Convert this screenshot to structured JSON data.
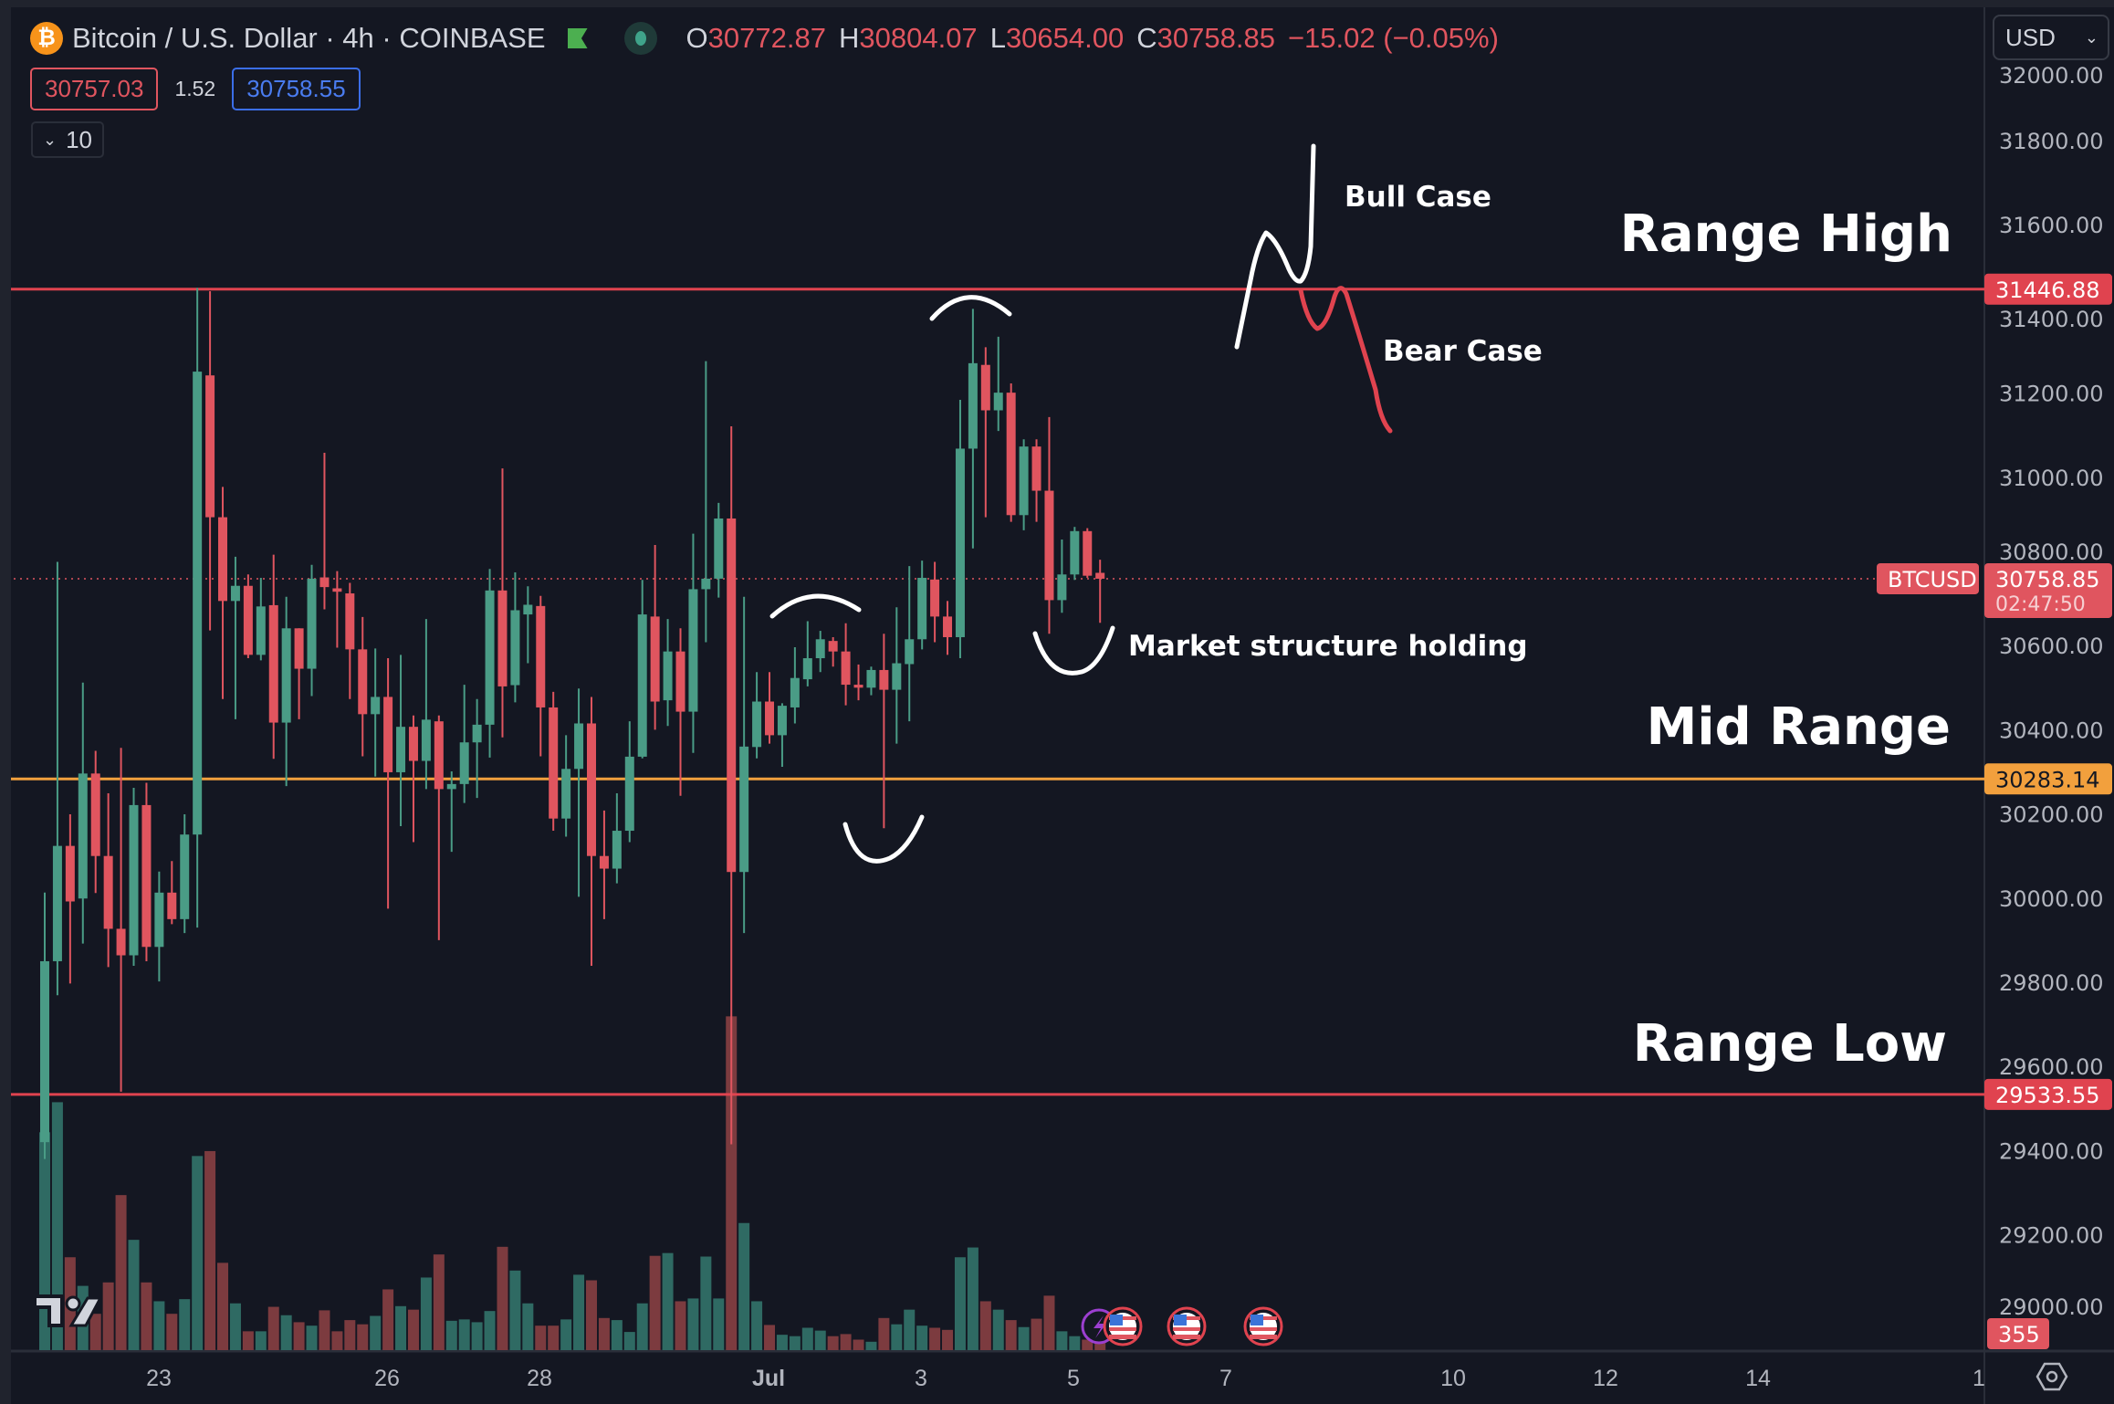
{
  "header": {
    "symbol_icon": "bitcoin-icon",
    "title": "Bitcoin / U.S. Dollar · 4h · COINBASE",
    "ohlc": {
      "o_label": "O",
      "o": "30772.87",
      "h_label": "H",
      "h": "30804.07",
      "l_label": "L",
      "l": "30654.00",
      "c_label": "C",
      "c": "30758.85",
      "change": "−15.02 (−0.05%)"
    },
    "bid": "30757.03",
    "spread": "1.52",
    "ask": "30758.55",
    "indicators_count": "10"
  },
  "currency_select": "USD",
  "colors": {
    "background": "#141722",
    "up": "#4a9c86",
    "down": "#e0555f",
    "volume_up": "#2f6a63",
    "volume_down": "#7c3b3f",
    "range_line": "#e0434f",
    "mid_line": "#f2a03d"
  },
  "chart_data": {
    "type": "candlestick",
    "symbol": "BTCUSD",
    "interval": "4h",
    "x_tick_labels": [
      "23",
      "26",
      "28",
      "Jul",
      "3",
      "5",
      "7",
      "10",
      "12",
      "14",
      "1"
    ],
    "y_tick_labels": [
      "32000.00",
      "31800.00",
      "31600.00",
      "31400.00",
      "31200.00",
      "31000.00",
      "30800.00",
      "30600.00",
      "30400.00",
      "30200.00",
      "30000.00",
      "29800.00",
      "29600.00",
      "29400.00",
      "29200.00",
      "29000.00"
    ],
    "ylim": [
      28900,
      32050
    ],
    "candles_ohlc": [
      [
        29420,
        30013,
        29380,
        29850
      ],
      [
        29850,
        30799,
        29769,
        30124
      ],
      [
        30124,
        30199,
        29797,
        29992
      ],
      [
        29999,
        30512,
        29892,
        30296
      ],
      [
        30296,
        30350,
        30012,
        30100
      ],
      [
        30100,
        30249,
        29836,
        29927
      ],
      [
        29927,
        30357,
        29540,
        29864
      ],
      [
        29864,
        30262,
        29839,
        30221
      ],
      [
        30221,
        30274,
        29850,
        29884
      ],
      [
        29884,
        30063,
        29802,
        30013
      ],
      [
        30013,
        30088,
        29938,
        29950
      ],
      [
        29950,
        30199,
        29917,
        30151
      ],
      [
        30151,
        31450,
        29930,
        31251
      ],
      [
        31242,
        31442,
        30636,
        30905
      ],
      [
        30905,
        30977,
        30473,
        30706
      ],
      [
        30706,
        30811,
        30425,
        30742
      ],
      [
        30742,
        30769,
        30570,
        30578
      ],
      [
        30578,
        30761,
        30565,
        30693
      ],
      [
        30696,
        30816,
        30331,
        30417
      ],
      [
        30417,
        30716,
        30266,
        30641
      ],
      [
        30641,
        30641,
        30425,
        30545
      ],
      [
        30545,
        30792,
        30480,
        30759
      ],
      [
        30762,
        31058,
        30686,
        30739
      ],
      [
        30736,
        30777,
        30595,
        30728
      ],
      [
        30724,
        30749,
        30473,
        30591
      ],
      [
        30591,
        30668,
        30337,
        30437
      ],
      [
        30437,
        30593,
        30289,
        30478
      ],
      [
        30478,
        30570,
        29975,
        30299
      ],
      [
        30299,
        30578,
        30171,
        30407
      ],
      [
        30407,
        30434,
        30133,
        30326
      ],
      [
        30326,
        30663,
        30259,
        30424
      ],
      [
        30420,
        30434,
        29900,
        30259
      ],
      [
        30259,
        30301,
        30110,
        30271
      ],
      [
        30271,
        30507,
        30226,
        30370
      ],
      [
        30370,
        30473,
        30238,
        30412
      ],
      [
        30412,
        30782,
        30334,
        30731
      ],
      [
        30731,
        31021,
        30382,
        30503
      ],
      [
        30506,
        30774,
        30465,
        30684
      ],
      [
        30674,
        30741,
        30558,
        30697
      ],
      [
        30694,
        30718,
        30337,
        30453
      ],
      [
        30453,
        30490,
        30160,
        30189
      ],
      [
        30189,
        30387,
        30146,
        30307
      ],
      [
        30307,
        30498,
        30003,
        30415
      ],
      [
        30415,
        30478,
        29839,
        30100
      ],
      [
        30100,
        30208,
        29950,
        30070
      ],
      [
        30070,
        30249,
        30035,
        30160
      ],
      [
        30160,
        30420,
        30133,
        30336
      ],
      [
        30336,
        30756,
        30332,
        30674
      ],
      [
        30669,
        30839,
        30400,
        30467
      ],
      [
        30470,
        30663,
        30409,
        30586
      ],
      [
        30586,
        30641,
        30243,
        30443
      ],
      [
        30443,
        30866,
        30345,
        30734
      ],
      [
        30734,
        31276,
        30608,
        30759
      ],
      [
        30759,
        30939,
        30714,
        30902
      ],
      [
        30902,
        31121,
        29415,
        30062
      ],
      [
        30062,
        30716,
        29917,
        30360
      ],
      [
        30359,
        30537,
        30332,
        30467
      ],
      [
        30467,
        30537,
        30367,
        30387
      ],
      [
        30387,
        30463,
        30312,
        30457
      ],
      [
        30453,
        30596,
        30415,
        30523
      ],
      [
        30520,
        30658,
        30503,
        30570
      ],
      [
        30570,
        30635,
        30537,
        30615
      ],
      [
        30611,
        30620,
        30550,
        30586
      ],
      [
        30586,
        30653,
        30458,
        30507
      ],
      [
        30507,
        30555,
        30470,
        30500
      ],
      [
        30500,
        30550,
        30482,
        30542
      ],
      [
        30542,
        30628,
        30166,
        30495
      ],
      [
        30495,
        30691,
        30367,
        30558
      ],
      [
        30556,
        30789,
        30420,
        30615
      ],
      [
        30615,
        30802,
        30591,
        30761
      ],
      [
        30757,
        30799,
        30608,
        30669
      ],
      [
        30669,
        30706,
        30578,
        30620
      ],
      [
        30620,
        31184,
        30570,
        31068
      ],
      [
        31068,
        31400,
        30831,
        31271
      ],
      [
        31267,
        31309,
        30905,
        31159
      ],
      [
        31159,
        31334,
        31110,
        31201
      ],
      [
        31201,
        31223,
        30894,
        30910
      ],
      [
        30910,
        31090,
        30874,
        31073
      ],
      [
        31073,
        31090,
        30894,
        30968
      ],
      [
        30968,
        31143,
        30628,
        30708
      ],
      [
        30708,
        30852,
        30678,
        30769
      ],
      [
        30769,
        30882,
        30756,
        30872
      ],
      [
        30872,
        30879,
        30761,
        30766
      ],
      [
        30772.87,
        30804.07,
        30654,
        30758.85
      ]
    ],
    "volumes": [
      4774,
      5432,
      2035,
      1408,
      796,
      1484,
      3397,
      2417,
      1484,
      1071,
      796,
      1117,
      4253,
      4361,
      1913,
      1025,
      413,
      413,
      949,
      765,
      612,
      536,
      872,
      413,
      658,
      566,
      750,
      1331,
      964,
      887,
      1591,
      2096,
      643,
      673,
      612,
      857,
      2264,
      1744,
      1025,
      536,
      536,
      673,
      1652,
      1530,
      704,
      658,
      398,
      1025,
      2066,
      2127,
      1071,
      1132,
      2050,
      1132,
      7313,
      2785,
      1071,
      551,
      337,
      306,
      490,
      428,
      306,
      352,
      230,
      184,
      704,
      566,
      887,
      536,
      490,
      444,
      2035,
      2249,
      1071,
      887,
      658,
      505,
      689,
      1193,
      413,
      306,
      230,
      355
    ],
    "horizontal_levels": [
      {
        "label": "Range High",
        "value": 31446.88,
        "tag": "31446.88",
        "color": "#e0434f"
      },
      {
        "label": "Mid Range",
        "value": 30283.14,
        "tag": "30283.14",
        "color": "#f2a03d"
      },
      {
        "label": "Range Low",
        "value": 29533.55,
        "tag": "29533.55",
        "color": "#e0434f"
      }
    ],
    "last_price": {
      "symbol_tag": "BTCUSD",
      "value": 30758.85,
      "tag": "30758.85",
      "countdown": "02:47:50"
    },
    "last_volume_tag": "355",
    "annotations": {
      "bull": "Bull Case",
      "bear": "Bear Case",
      "market": "Market structure holding"
    },
    "event_icons": [
      "lightning-icon",
      "us-flag-icon",
      "us-flag-icon",
      "us-flag-icon"
    ]
  }
}
